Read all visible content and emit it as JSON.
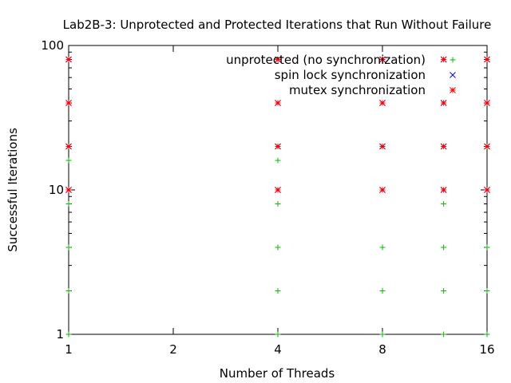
{
  "chart_data": {
    "type": "scatter",
    "title": "Lab2B-3: Unprotected and Protected Iterations that Run Without Failure",
    "xlabel": "Number of Threads",
    "ylabel": "Successful Iterations",
    "x_scale": "log2",
    "y_scale": "log10",
    "xlim": [
      1,
      16
    ],
    "ylim": [
      1,
      100
    ],
    "x_ticks": [
      {
        "value": 1,
        "label": "1"
      },
      {
        "value": 2,
        "label": "2"
      },
      {
        "value": 4,
        "label": "4"
      },
      {
        "value": 8,
        "label": "8"
      },
      {
        "value": 16,
        "label": "16"
      }
    ],
    "y_ticks": [
      {
        "value": 1,
        "label": "1"
      },
      {
        "value": 10,
        "label": "10"
      },
      {
        "value": 100,
        "label": "100"
      }
    ],
    "grid": false,
    "legend_position": "top-right",
    "series": [
      {
        "name": "unprotected (no synchronization)",
        "marker": "+",
        "color": "#00c000",
        "points": [
          [
            1,
            1
          ],
          [
            1,
            2
          ],
          [
            1,
            4
          ],
          [
            1,
            8
          ],
          [
            1,
            16
          ],
          [
            4,
            1
          ],
          [
            4,
            2
          ],
          [
            4,
            4
          ],
          [
            4,
            8
          ],
          [
            4,
            16
          ],
          [
            8,
            1
          ],
          [
            8,
            2
          ],
          [
            8,
            4
          ],
          [
            12,
            1
          ],
          [
            12,
            2
          ],
          [
            12,
            4
          ],
          [
            12,
            8
          ],
          [
            16,
            1
          ],
          [
            16,
            2
          ],
          [
            16,
            4
          ]
        ]
      },
      {
        "name": "spin lock synchronization",
        "marker": "x",
        "color": "#0000ff",
        "points": [
          [
            1,
            10
          ],
          [
            1,
            20
          ],
          [
            1,
            40
          ],
          [
            1,
            80
          ],
          [
            4,
            10
          ],
          [
            4,
            20
          ],
          [
            4,
            40
          ],
          [
            4,
            80
          ],
          [
            8,
            10
          ],
          [
            8,
            20
          ],
          [
            8,
            40
          ],
          [
            8,
            80
          ],
          [
            12,
            10
          ],
          [
            12,
            20
          ],
          [
            12,
            40
          ],
          [
            12,
            80
          ],
          [
            16,
            10
          ],
          [
            16,
            20
          ],
          [
            16,
            40
          ],
          [
            16,
            80
          ]
        ]
      },
      {
        "name": "mutex synchronization",
        "marker": "*",
        "color": "#ff0000",
        "points": [
          [
            1,
            10
          ],
          [
            1,
            20
          ],
          [
            1,
            40
          ],
          [
            1,
            80
          ],
          [
            4,
            10
          ],
          [
            4,
            20
          ],
          [
            4,
            40
          ],
          [
            4,
            80
          ],
          [
            8,
            10
          ],
          [
            8,
            20
          ],
          [
            8,
            40
          ],
          [
            8,
            80
          ],
          [
            12,
            10
          ],
          [
            12,
            20
          ],
          [
            12,
            40
          ],
          [
            12,
            80
          ],
          [
            16,
            10
          ],
          [
            16,
            20
          ],
          [
            16,
            40
          ],
          [
            16,
            80
          ]
        ]
      }
    ]
  }
}
